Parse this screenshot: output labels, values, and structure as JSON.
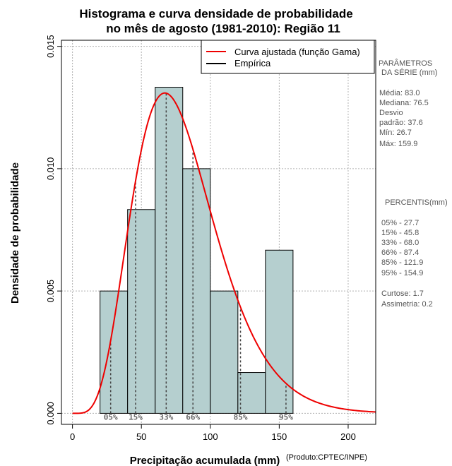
{
  "chart_data": {
    "type": "bar",
    "title_line1": "Histograma e curva densidade de probabilidade",
    "title_line2": "no mês de agosto (1981-2010): Região 11",
    "xlabel": "Precipitação acumulada (mm)",
    "ylabel": "Densidade de probabilidade",
    "credit": "(Produto:CPTEC/INPE)",
    "xlim": [
      -8,
      220
    ],
    "ylim": [
      -0.00045,
      0.01525
    ],
    "x_ticks": [
      0,
      50,
      100,
      150,
      200
    ],
    "y_ticks": [
      0.0,
      0.005,
      0.01,
      0.015
    ],
    "y_tick_labels": [
      "0.000",
      "0.005",
      "0.010",
      "0.015"
    ],
    "bins": [
      {
        "from": 20,
        "to": 40,
        "density": 0.005
      },
      {
        "from": 40,
        "to": 60,
        "density": 0.00833
      },
      {
        "from": 60,
        "to": 80,
        "density": 0.01333
      },
      {
        "from": 80,
        "to": 100,
        "density": 0.01
      },
      {
        "from": 100,
        "to": 120,
        "density": 0.005
      },
      {
        "from": 120,
        "to": 140,
        "density": 0.00167
      },
      {
        "from": 140,
        "to": 160,
        "density": 0.00667
      }
    ],
    "gamma_fit": {
      "name": "Curva ajustada (função Gama)",
      "shape": 6.0,
      "scale": 13.4,
      "color": "#ee0000"
    },
    "empirical": {
      "name": "Empírica",
      "color": "#000000"
    },
    "percentile_markers": [
      {
        "label": "05%",
        "value": 27.7
      },
      {
        "label": "15%",
        "value": 45.8
      },
      {
        "label": "33%",
        "value": 68.0
      },
      {
        "label": "66%",
        "value": 87.4
      },
      {
        "label": "85%",
        "value": 121.9
      },
      {
        "label": "95%",
        "value": 154.9
      }
    ],
    "bar_color": "#b5cfcf",
    "grid": true,
    "legend_position": "top-right"
  },
  "stats_panel": {
    "params_title_1": "PARÂMETROS",
    "params_title_2": "DA SÉRIE (mm)",
    "media": "Média:  83.0",
    "mediana": "Mediana:  76.5",
    "desvio_1": "Desvio",
    "desvio_2": "padrão:  37.6",
    "min": "Mín:  26.7",
    "max": "Máx:  159.9",
    "percentis_title": "PERCENTIS(mm)",
    "p05": "05% -  27.7",
    "p15": "15% -  45.8",
    "p33": "33% -  68.0",
    "p66": "66% -  87.4",
    "p85": "85% -  121.9",
    "p95": "95% -  154.9",
    "curtose": "Curtose:  1.7",
    "assimetria": "Assimetria:  0.2"
  }
}
